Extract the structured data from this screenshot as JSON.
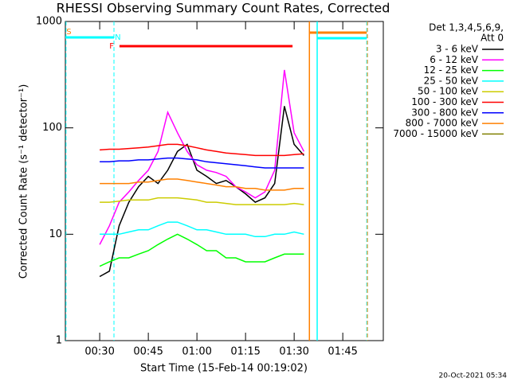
{
  "chart_data": {
    "type": "line",
    "title": "RHESSI Observing Summary Count Rates, Corrected",
    "xlabel": "Start Time (15-Feb-14 00:19:02)",
    "ylabel": "Corrected Count Rate (s⁻¹ detector⁻¹)",
    "footer": "20-Oct-2021 05:34",
    "legend_title": [
      "Det 1,3,4,5,6,9,",
      "Att 0"
    ],
    "log_y": true,
    "xlim": [
      19.4,
      117.5
    ],
    "ylim": [
      1,
      1000
    ],
    "yticks": [
      1,
      10,
      100,
      1000
    ],
    "xticks": [
      {
        "value": 30,
        "label": "00:30"
      },
      {
        "value": 45,
        "label": "00:45"
      },
      {
        "value": 60,
        "label": "01:00"
      },
      {
        "value": 75,
        "label": "01:15"
      },
      {
        "value": 90,
        "label": "01:30"
      },
      {
        "value": 105,
        "label": "01:45"
      }
    ],
    "x": [
      30,
      33,
      36,
      39,
      42,
      45,
      48,
      51,
      54,
      57,
      60,
      63,
      66,
      69,
      72,
      75,
      78,
      81,
      84,
      87,
      90,
      93
    ],
    "series": [
      {
        "name": "3 - 6 keV",
        "color": "#000000",
        "values": [
          4,
          4.5,
          12,
          20,
          28,
          35,
          30,
          40,
          60,
          70,
          40,
          35,
          30,
          32,
          28,
          24,
          20,
          22,
          30,
          160,
          70,
          55
        ]
      },
      {
        "name": "6 - 12 keV",
        "color": "#ff00ff",
        "values": [
          8,
          12,
          20,
          25,
          32,
          40,
          60,
          140,
          90,
          60,
          45,
          40,
          38,
          35,
          28,
          25,
          22,
          25,
          40,
          350,
          90,
          60
        ]
      },
      {
        "name": "12 - 25 keV",
        "color": "#00ff00",
        "values": [
          5,
          5.5,
          6,
          6,
          6.5,
          7,
          8,
          9,
          10,
          9,
          8,
          7,
          7,
          6,
          6,
          5.5,
          5.5,
          5.5,
          6,
          6.5,
          6.5,
          6.5
        ]
      },
      {
        "name": "25 - 50 keV",
        "color": "#00ffff",
        "values": [
          10,
          10,
          10,
          10.5,
          11,
          11,
          12,
          13,
          13,
          12,
          11,
          11,
          10.5,
          10,
          10,
          10,
          9.5,
          9.5,
          10,
          10,
          10.5,
          10
        ]
      },
      {
        "name": "50 - 100 keV",
        "color": "#cccc00",
        "values": [
          20,
          20,
          20.5,
          21,
          21,
          21,
          22,
          22,
          22,
          21.5,
          21,
          20,
          20,
          19.5,
          19,
          19,
          19,
          19,
          19,
          19,
          19.5,
          19
        ]
      },
      {
        "name": "100 - 300 keV",
        "color": "#ff0000",
        "values": [
          62,
          63,
          63,
          64,
          65,
          66,
          68,
          70,
          70,
          68,
          65,
          62,
          60,
          58,
          57,
          56,
          55,
          55,
          55,
          55,
          56,
          57
        ]
      },
      {
        "name": "300 - 800 keV",
        "color": "#0000ff",
        "values": [
          48,
          48,
          49,
          49,
          50,
          50,
          51,
          52,
          52,
          51,
          50,
          48,
          47,
          46,
          45,
          44,
          43,
          42,
          42,
          42,
          42,
          42
        ]
      },
      {
        "name": "800 - 7000 keV",
        "color": "#ff8000",
        "values": [
          30,
          30,
          30,
          30,
          31,
          31,
          32,
          33,
          33,
          32,
          31,
          30,
          29,
          28,
          28,
          27,
          27,
          26,
          26,
          26,
          27,
          27
        ]
      },
      {
        "name": "7000 - 15000 keV",
        "color": "#808000",
        "values": [
          null,
          null,
          null,
          null,
          null,
          null,
          null,
          null,
          null,
          null,
          null,
          null,
          null,
          null,
          null,
          null,
          null,
          null,
          null,
          null,
          null,
          null
        ]
      }
    ],
    "flag_labels": [
      {
        "label": "S",
        "color": "#ff8000",
        "x": 20.5
      },
      {
        "label": "N",
        "color": "#00ffff",
        "x": 35.6
      },
      {
        "label": "F",
        "color": "#ff0000",
        "x": 33.7
      }
    ],
    "flag_bars": [
      {
        "color": "#00ffff",
        "x": [
          19.4,
          34.4
        ]
      },
      {
        "color": "#ff0000",
        "x": [
          36.1,
          89.5
        ]
      },
      {
        "color": "#ff8000",
        "x": [
          94.7,
          112.4
        ]
      },
      {
        "color": "#00ffff",
        "x": [
          97.1,
          112.4
        ]
      }
    ],
    "markers": [
      {
        "x": 19.6,
        "color": "#00ffff",
        "dash": true
      },
      {
        "x": 34.4,
        "color": "#00ffff",
        "dash": true
      },
      {
        "x": 94.7,
        "color": "#ff8000",
        "dash": false
      },
      {
        "x": 97.1,
        "color": "#00ffff",
        "dash": false
      },
      {
        "x": 112.4,
        "color": "#00ffff",
        "dash": true
      },
      {
        "x": 112.6,
        "color": "#ff8000",
        "dash": true
      }
    ]
  }
}
